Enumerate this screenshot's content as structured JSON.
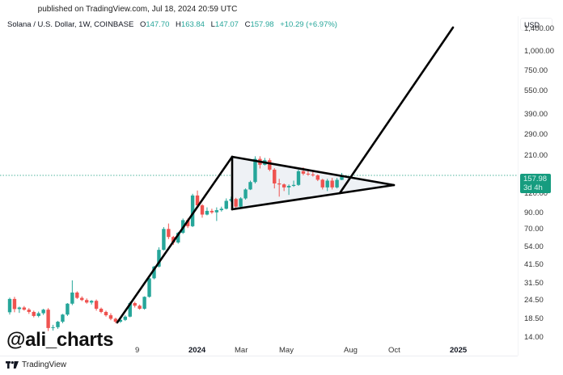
{
  "header": {
    "published": "published on TradingView.com, Jul 18, 2024 20:59 UTC"
  },
  "legend": {
    "symbol": "Solana / U.S. Dollar, 1W, COINBASE",
    "open_label": "O",
    "open": "147.70",
    "high_label": "H",
    "high": "163.84",
    "low_label": "L",
    "low": "147.07",
    "close_label": "C",
    "close": "157.98",
    "change": "+10.29 (+6.97%)"
  },
  "price_axis": {
    "currency": "USD",
    "labels": [
      "1,400.00",
      "1,000.00",
      "750.00",
      "550.00",
      "390.00",
      "290.00",
      "210.00",
      "120.00",
      "90.00",
      "70.00",
      "54.00",
      "41.50",
      "31.50",
      "24.50",
      "18.50",
      "14.00"
    ],
    "current_price": "157.98",
    "countdown": "3d 4h"
  },
  "time_axis": {
    "labels": [
      {
        "text": "9",
        "bold": false
      },
      {
        "text": "2024",
        "bold": true
      },
      {
        "text": "Mar",
        "bold": false
      },
      {
        "text": "May",
        "bold": false
      },
      {
        "text": "Aug",
        "bold": false
      },
      {
        "text": "Oct",
        "bold": false
      },
      {
        "text": "2025",
        "bold": true
      }
    ]
  },
  "watermark": "@ali_charts",
  "footer": {
    "brand": "TradingView"
  },
  "colors": {
    "up": "#26a69a",
    "down": "#ef5350",
    "badge": "#169c7f",
    "drawing": "#000000",
    "pennant_fill": "#eef1f5"
  },
  "chart_data": {
    "type": "candlestick",
    "title": "Solana / U.S. Dollar, 1W, COINBASE",
    "xlabel": "",
    "ylabel": "USD",
    "y_scale": "log",
    "ylim": [
      13,
      1600
    ],
    "y_ticks": [
      1400,
      1000,
      750,
      550,
      390,
      290,
      210,
      120,
      90,
      70,
      54,
      41.5,
      31.5,
      24.5,
      18.5,
      14
    ],
    "x_ticks": [
      "9",
      "2024",
      "Mar",
      "May",
      "Aug",
      "Oct",
      "2025"
    ],
    "last": {
      "open": 147.7,
      "high": 163.84,
      "low": 147.07,
      "close": 157.98,
      "change": 10.29,
      "change_pct": 6.97
    },
    "candles": [
      {
        "o": 20.5,
        "h": 25.5,
        "l": 19.8,
        "c": 25.0
      },
      {
        "o": 25.0,
        "h": 25.8,
        "l": 20.5,
        "c": 21.5
      },
      {
        "o": 21.5,
        "h": 22.3,
        "l": 20.3,
        "c": 22.0
      },
      {
        "o": 22.0,
        "h": 22.5,
        "l": 21.0,
        "c": 21.3
      },
      {
        "o": 21.3,
        "h": 21.8,
        "l": 20.0,
        "c": 20.6
      },
      {
        "o": 20.6,
        "h": 21.0,
        "l": 19.0,
        "c": 19.4
      },
      {
        "o": 19.4,
        "h": 20.7,
        "l": 19.0,
        "c": 20.2
      },
      {
        "o": 20.2,
        "h": 21.6,
        "l": 19.7,
        "c": 21.3
      },
      {
        "o": 21.3,
        "h": 21.8,
        "l": 15.5,
        "c": 16.2
      },
      {
        "o": 16.2,
        "h": 17.0,
        "l": 15.6,
        "c": 16.4
      },
      {
        "o": 16.4,
        "h": 18.0,
        "l": 16.0,
        "c": 17.8
      },
      {
        "o": 17.8,
        "h": 20.0,
        "l": 17.4,
        "c": 19.8
      },
      {
        "o": 19.8,
        "h": 23.5,
        "l": 19.4,
        "c": 23.3
      },
      {
        "o": 23.3,
        "h": 33.0,
        "l": 22.8,
        "c": 27.5
      },
      {
        "o": 27.5,
        "h": 28.0,
        "l": 25.0,
        "c": 25.4
      },
      {
        "o": 25.4,
        "h": 26.0,
        "l": 24.2,
        "c": 24.6
      },
      {
        "o": 24.6,
        "h": 25.2,
        "l": 23.3,
        "c": 23.7
      },
      {
        "o": 23.7,
        "h": 24.6,
        "l": 23.0,
        "c": 24.3
      },
      {
        "o": 24.3,
        "h": 24.8,
        "l": 21.0,
        "c": 21.6
      },
      {
        "o": 21.6,
        "h": 22.0,
        "l": 20.2,
        "c": 20.6
      },
      {
        "o": 20.6,
        "h": 21.0,
        "l": 19.2,
        "c": 19.6
      },
      {
        "o": 19.6,
        "h": 20.2,
        "l": 18.2,
        "c": 18.6
      },
      {
        "o": 18.6,
        "h": 18.9,
        "l": 17.4,
        "c": 17.8
      },
      {
        "o": 17.8,
        "h": 18.6,
        "l": 17.5,
        "c": 18.3
      },
      {
        "o": 18.3,
        "h": 19.6,
        "l": 18.0,
        "c": 19.2
      },
      {
        "o": 19.2,
        "h": 24.0,
        "l": 19.0,
        "c": 23.5
      },
      {
        "o": 23.5,
        "h": 24.0,
        "l": 22.0,
        "c": 22.6
      },
      {
        "o": 22.6,
        "h": 23.0,
        "l": 21.3,
        "c": 21.6
      },
      {
        "o": 21.6,
        "h": 26.0,
        "l": 21.3,
        "c": 25.8
      },
      {
        "o": 25.8,
        "h": 35.0,
        "l": 25.5,
        "c": 34.0
      },
      {
        "o": 34.0,
        "h": 41.0,
        "l": 33.5,
        "c": 40.5
      },
      {
        "o": 40.5,
        "h": 54.0,
        "l": 40.0,
        "c": 52.0
      },
      {
        "o": 52.0,
        "h": 73.0,
        "l": 51.5,
        "c": 71.0
      },
      {
        "o": 71.0,
        "h": 77.0,
        "l": 61.0,
        "c": 63.0
      },
      {
        "o": 63.0,
        "h": 64.0,
        "l": 56.0,
        "c": 58.0
      },
      {
        "o": 58.0,
        "h": 68.0,
        "l": 57.0,
        "c": 67.0
      },
      {
        "o": 67.0,
        "h": 83.0,
        "l": 66.0,
        "c": 81.0
      },
      {
        "o": 81.0,
        "h": 83.0,
        "l": 72.0,
        "c": 74.0
      },
      {
        "o": 74.0,
        "h": 120.0,
        "l": 73.0,
        "c": 117.0
      },
      {
        "o": 117.0,
        "h": 126.0,
        "l": 98.0,
        "c": 101.0
      },
      {
        "o": 101.0,
        "h": 103.0,
        "l": 84.0,
        "c": 88.0
      },
      {
        "o": 88.0,
        "h": 98.0,
        "l": 87.0,
        "c": 93.0
      },
      {
        "o": 93.0,
        "h": 96.0,
        "l": 89.0,
        "c": 91.0
      },
      {
        "o": 91.0,
        "h": 98.0,
        "l": 80.0,
        "c": 94.0
      },
      {
        "o": 94.0,
        "h": 99.0,
        "l": 92.0,
        "c": 96.0
      },
      {
        "o": 96.0,
        "h": 112.0,
        "l": 95.0,
        "c": 108.0
      },
      {
        "o": 108.0,
        "h": 115.0,
        "l": 106.0,
        "c": 111.0
      },
      {
        "o": 111.0,
        "h": 113.0,
        "l": 97.0,
        "c": 99.0
      },
      {
        "o": 99.0,
        "h": 114.0,
        "l": 97.0,
        "c": 112.0
      },
      {
        "o": 112.0,
        "h": 130.0,
        "l": 110.0,
        "c": 128.0
      },
      {
        "o": 128.0,
        "h": 146.0,
        "l": 127.0,
        "c": 143.0
      },
      {
        "o": 143.0,
        "h": 210.0,
        "l": 140.0,
        "c": 202.0
      },
      {
        "o": 202.0,
        "h": 210.0,
        "l": 175.0,
        "c": 185.0
      },
      {
        "o": 185.0,
        "h": 205.0,
        "l": 183.0,
        "c": 198.0
      },
      {
        "o": 198.0,
        "h": 204.0,
        "l": 168.0,
        "c": 172.0
      },
      {
        "o": 172.0,
        "h": 176.0,
        "l": 130.0,
        "c": 140.0
      },
      {
        "o": 140.0,
        "h": 150.0,
        "l": 115.0,
        "c": 138.0
      },
      {
        "o": 138.0,
        "h": 140.0,
        "l": 125.0,
        "c": 132.0
      },
      {
        "o": 132.0,
        "h": 138.0,
        "l": 118.0,
        "c": 135.0
      },
      {
        "o": 135.0,
        "h": 146.0,
        "l": 133.0,
        "c": 137.0
      },
      {
        "o": 137.0,
        "h": 172.0,
        "l": 135.0,
        "c": 168.0
      },
      {
        "o": 168.0,
        "h": 178.0,
        "l": 158.0,
        "c": 162.0
      },
      {
        "o": 162.0,
        "h": 170.0,
        "l": 157.0,
        "c": 160.0
      },
      {
        "o": 160.0,
        "h": 168.0,
        "l": 155.0,
        "c": 158.0
      },
      {
        "o": 158.0,
        "h": 160.0,
        "l": 145.0,
        "c": 148.0
      },
      {
        "o": 148.0,
        "h": 150.0,
        "l": 128.0,
        "c": 132.0
      },
      {
        "o": 132.0,
        "h": 150.0,
        "l": 125.0,
        "c": 146.0
      },
      {
        "o": 146.0,
        "h": 152.0,
        "l": 128.0,
        "c": 132.0
      },
      {
        "o": 132.0,
        "h": 152.0,
        "l": 130.0,
        "c": 147.7
      },
      {
        "o": 147.7,
        "h": 163.84,
        "l": 147.07,
        "c": 157.98
      }
    ],
    "drawings": [
      {
        "type": "trendline",
        "label": "flagpole",
        "from_price": 18.5,
        "to_price": 210
      },
      {
        "type": "triangle",
        "label": "pennant",
        "points_price": [
          [
            210,
            "Feb-2024"
          ],
          [
            100,
            "Feb-2024"
          ],
          [
            160,
            "Oct-2024"
          ]
        ]
      },
      {
        "type": "trendline",
        "label": "breakout-projection",
        "from_price": 125,
        "to_price": 1450
      }
    ]
  }
}
